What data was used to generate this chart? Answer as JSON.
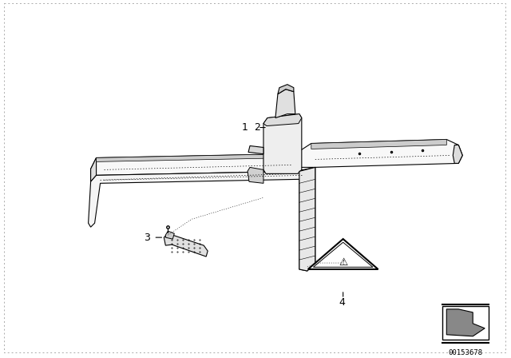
{
  "bg_color": "#ffffff",
  "diagram_code": "00153678",
  "line_color": "#000000",
  "lw": 0.8
}
